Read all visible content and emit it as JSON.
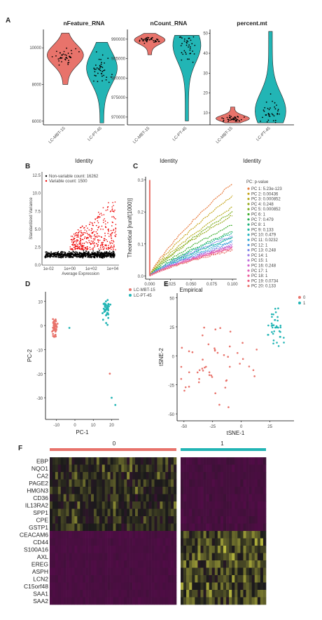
{
  "panel_labels": [
    "A",
    "B",
    "C",
    "D",
    "E",
    "F"
  ],
  "colors": {
    "red": "#e8736b",
    "teal": "#22b5b5",
    "heat_low": "#5a0a4e",
    "heat_mid": "#1a1a1a",
    "heat_high": "#f0f04a"
  },
  "chart_data": [
    {
      "type": "violin",
      "panel": "A",
      "title": "nFeature_RNA",
      "xlabel": "Identity",
      "categories": [
        "LC-MBT-15",
        "LC-PT-45"
      ],
      "yticks": [
        "6000",
        "8000",
        "10000"
      ],
      "ylim": [
        5800,
        11000
      ]
    },
    {
      "type": "violin",
      "panel": "A",
      "title": "nCount_RNA",
      "xlabel": "Identity",
      "categories": [
        "LC-MBT-15",
        "LC-PT-45"
      ],
      "yticks": [
        "970000",
        "975000",
        "980000",
        "985000",
        "990000"
      ],
      "ylim": [
        968000,
        992500
      ]
    },
    {
      "type": "violin",
      "panel": "A",
      "title": "percent.mt",
      "xlabel": "Identity",
      "categories": [
        "LC-MBT-15",
        "LC-PT-45"
      ],
      "yticks": [
        "10",
        "20",
        "30",
        "40",
        "50"
      ],
      "ylim": [
        4,
        52
      ]
    },
    {
      "type": "scatter",
      "panel": "B",
      "xlabel": "Average Expression",
      "ylabel": "Standardized Variance",
      "legend": [
        "Non-variable count: 16262",
        "Variable count: 1500"
      ],
      "xticks": [
        "1e-02",
        "1e+00",
        "1e+02",
        "1e+04"
      ],
      "yticks": [
        "0.0",
        "2.5",
        "5.0",
        "7.5",
        "10.0",
        "12.5"
      ]
    },
    {
      "type": "line",
      "panel": "C",
      "xlabel": "Empirical",
      "ylabel": "Theoretical [runif(1000)]",
      "xticks": [
        "0.000",
        "0.025",
        "0.050",
        "0.075",
        "0.100"
      ],
      "yticks": [
        "0.0",
        "0.1",
        "0.2",
        "0.3"
      ],
      "xlim": [
        -0.005,
        0.105
      ],
      "ylim": [
        -0.01,
        0.31
      ],
      "legend_title": "PC: p-value",
      "series": [
        {
          "name": "PC 1: 5.23e-123",
          "end": 0.29
        },
        {
          "name": "PC 2: 0.00436",
          "end": 0.25
        },
        {
          "name": "PC 3: 0.000852",
          "end": 0.215
        },
        {
          "name": "PC 4: 0.248",
          "end": 0.19
        },
        {
          "name": "PC 5: 0.000852",
          "end": 0.2
        },
        {
          "name": "PC 6: 1",
          "end": 0.16
        },
        {
          "name": "PC 7: 0.479",
          "end": 0.14
        },
        {
          "name": "PC 8: 1",
          "end": 0.12
        },
        {
          "name": "PC 9: 0.133",
          "end": 0.135
        },
        {
          "name": "PC 10: 0.479",
          "end": 0.12
        },
        {
          "name": "PC 11: 0.0232",
          "end": 0.11
        },
        {
          "name": "PC 12: 1",
          "end": 0.105
        },
        {
          "name": "PC 13: 0.248",
          "end": 0.125
        },
        {
          "name": "PC 14: 1",
          "end": 0.1
        },
        {
          "name": "PC 15: 1",
          "end": 0.095
        },
        {
          "name": "PC 16: 0.248",
          "end": 0.09
        },
        {
          "name": "PC 17: 1",
          "end": 0.092
        },
        {
          "name": "PC 18: 1",
          "end": 0.088
        },
        {
          "name": "PC 19: 0.0734",
          "end": 0.085
        },
        {
          "name": "PC 20: 0.133",
          "end": 0.08
        }
      ]
    },
    {
      "type": "scatter",
      "panel": "D",
      "xlabel": "PC-1",
      "ylabel": "PC-2",
      "legend": [
        "LC-MBT-15",
        "LC-PT-45"
      ],
      "xticks": [
        "-10",
        "0",
        "10",
        "20"
      ],
      "yticks": [
        "10",
        "0",
        "-10",
        "-20",
        "-30"
      ],
      "xlim": [
        -16,
        24
      ],
      "ylim": [
        -39,
        14
      ]
    },
    {
      "type": "scatter",
      "panel": "E",
      "xlabel": "tSNE-1",
      "ylabel": "tSNE-2",
      "legend": [
        "0",
        "1"
      ],
      "xticks": [
        "-50",
        "-25",
        "0",
        "25"
      ],
      "yticks": [
        "50",
        "25",
        "0",
        "-25",
        "-50"
      ],
      "xlim": [
        -56,
        46
      ],
      "ylim": [
        -56,
        54
      ]
    },
    {
      "type": "heatmap",
      "panel": "F",
      "groups": [
        "0",
        "1"
      ],
      "genes": [
        "EBP",
        "NQO1",
        "CA2",
        "PAGE2",
        "HMGN3",
        "CD36",
        "IL13RA2",
        "SPP1",
        "CPE",
        "GSTP1",
        "CEACAM6",
        "CD44",
        "S100A16",
        "AXL",
        "EREG",
        "ASPH",
        "LCN2",
        "C15orf48",
        "SAA1",
        "SAA2"
      ]
    }
  ]
}
